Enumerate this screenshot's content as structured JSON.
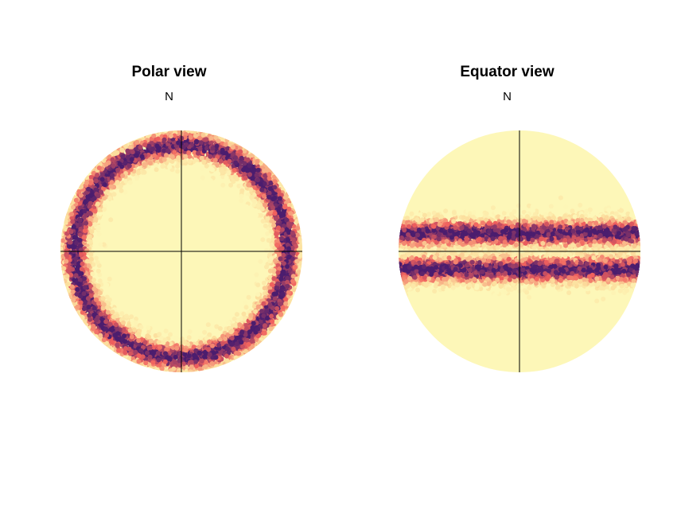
{
  "chart_data": [
    {
      "type": "scatter",
      "title": "Polar view",
      "north_label": "N",
      "projection": "polar",
      "density_band": {
        "description_kind": "ring",
        "peak_radius_fraction": 0.88,
        "spread_fraction": 0.08
      },
      "colors": {
        "background": "#fdf7b8",
        "low": "#fcdd9c",
        "mid": "#f0605d",
        "high": "#4b1d6e"
      },
      "crosshair": true
    },
    {
      "type": "scatter",
      "title": "Equator view",
      "north_label": "N",
      "projection": "equatorial",
      "density_band": {
        "description_kind": "two-horizontal-bands",
        "peak_offset_fraction": 0.15,
        "spread_fraction": 0.08
      },
      "colors": {
        "background": "#fdf7b8",
        "low": "#fcdd9c",
        "mid": "#f0605d",
        "high": "#4b1d6e"
      },
      "crosshair": true
    }
  ]
}
